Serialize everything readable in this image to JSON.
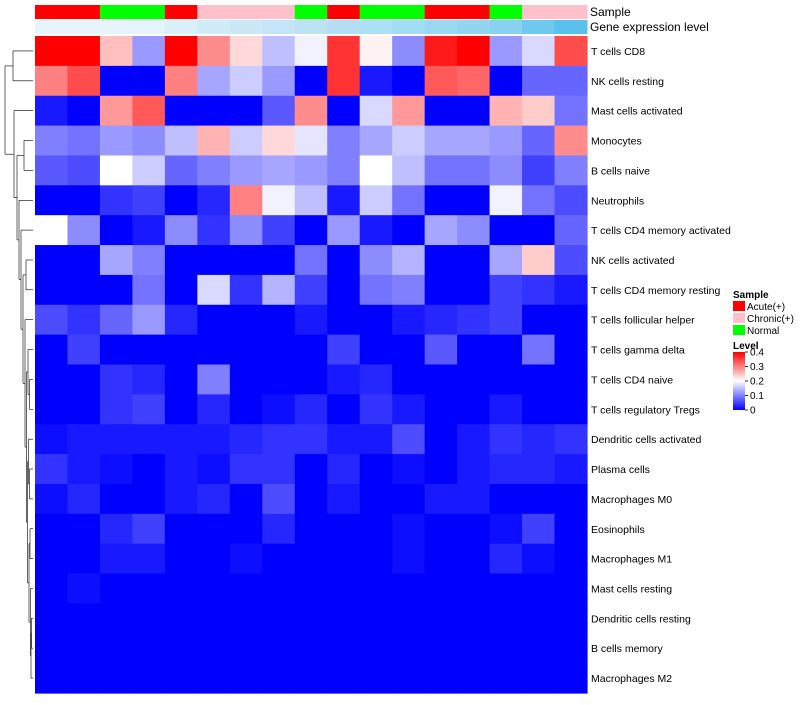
{
  "chart_data": {
    "type": "heatmap",
    "title": "",
    "annotation_rows": {
      "sample_label": "Sample",
      "expression_label": "Gene expression level",
      "sample_groups": [
        "Acute(+)",
        "Acute(+)",
        "Normal",
        "Normal",
        "Acute(+)",
        "Chronic(+)",
        "Chronic(+)",
        "Chronic(+)",
        "Normal",
        "Acute(+)",
        "Normal",
        "Normal",
        "Acute(+)",
        "Acute(+)",
        "Normal",
        "Chronic(+)",
        "Chronic(+)"
      ],
      "expression_level_colors": [
        "#e6f4fb",
        "#e6f4fb",
        "#e6f4fb",
        "#e6f4fb",
        "#daf0f9",
        "#d2ecf7",
        "#cbe8f6",
        "#c3e5f5",
        "#bce2f4",
        "#b4def3",
        "#ace0f4",
        "#a4ddf3",
        "#9bd9f2",
        "#92d5f1",
        "#88d1f0",
        "#6fc8ee",
        "#59c1ec"
      ]
    },
    "rows": [
      "T cells CD8",
      "NK cells resting",
      "Mast cells activated",
      "Monocytes",
      "B cells naive",
      "Neutrophils",
      "T cells CD4 memory activated",
      "NK cells activated",
      "T cells CD4 memory resting",
      "T cells follicular helper",
      "T cells gamma delta",
      "T cells CD4 naive",
      "T cells regulatory  Tregs",
      "Dendritic cells activated",
      "Plasma cells",
      "Macrophages M0",
      "Eosinophils",
      "Macrophages M1",
      "Mast cells resting",
      "Dendritic cells resting",
      "B cells memory",
      "Macrophages M2"
    ],
    "values": [
      [
        0.4,
        0.4,
        0.25,
        0.12,
        0.4,
        0.29,
        0.23,
        0.15,
        0.19,
        0.36,
        0.21,
        0.11,
        0.38,
        0.4,
        0.12,
        0.17,
        0.34
      ],
      [
        0.3,
        0.34,
        0.0,
        0.0,
        0.3,
        0.13,
        0.16,
        0.12,
        0.0,
        0.36,
        0.02,
        0.0,
        0.33,
        0.32,
        0.0,
        0.08,
        0.08
      ],
      [
        0.02,
        0.0,
        0.28,
        0.33,
        0.0,
        0.0,
        0.0,
        0.07,
        0.29,
        0.0,
        0.17,
        0.28,
        0.0,
        0.0,
        0.26,
        0.24,
        0.09
      ],
      [
        0.1,
        0.09,
        0.12,
        0.11,
        0.15,
        0.26,
        0.16,
        0.23,
        0.18,
        0.1,
        0.13,
        0.16,
        0.13,
        0.13,
        0.12,
        0.08,
        0.29
      ],
      [
        0.07,
        0.06,
        0.2,
        0.16,
        0.08,
        0.1,
        0.12,
        0.13,
        0.12,
        0.1,
        0.2,
        0.15,
        0.09,
        0.09,
        0.11,
        0.05,
        0.1
      ],
      [
        0.0,
        0.0,
        0.04,
        0.05,
        0.0,
        0.03,
        0.3,
        0.19,
        0.15,
        0.02,
        0.16,
        0.09,
        0.0,
        0.0,
        0.19,
        0.09,
        0.06
      ],
      [
        0.2,
        0.11,
        0.0,
        0.02,
        0.11,
        0.04,
        0.11,
        0.05,
        0.0,
        0.12,
        0.02,
        0.0,
        0.13,
        0.11,
        0.0,
        0.0,
        0.08
      ],
      [
        0.0,
        0.0,
        0.13,
        0.1,
        0.0,
        0.0,
        0.0,
        0.0,
        0.09,
        0.0,
        0.11,
        0.14,
        0.0,
        0.0,
        0.13,
        0.24,
        0.06
      ],
      [
        0.0,
        0.0,
        0.0,
        0.09,
        0.0,
        0.17,
        0.04,
        0.14,
        0.05,
        0.0,
        0.09,
        0.1,
        0.0,
        0.0,
        0.05,
        0.04,
        0.02
      ],
      [
        0.06,
        0.04,
        0.08,
        0.12,
        0.03,
        0.0,
        0.0,
        0.0,
        0.02,
        0.0,
        0.0,
        0.02,
        0.03,
        0.04,
        0.05,
        0.0,
        0.0
      ],
      [
        0.0,
        0.05,
        0.0,
        0.0,
        0.0,
        0.0,
        0.0,
        0.0,
        0.0,
        0.05,
        0.0,
        0.0,
        0.07,
        0.0,
        0.0,
        0.09,
        0.0
      ],
      [
        0.0,
        0.0,
        0.04,
        0.03,
        0.0,
        0.1,
        0.0,
        0.0,
        0.0,
        0.02,
        0.03,
        0.0,
        0.0,
        0.0,
        0.0,
        0.0,
        0.0
      ],
      [
        0.0,
        0.0,
        0.04,
        0.05,
        0.0,
        0.03,
        0.0,
        0.01,
        0.03,
        0.0,
        0.04,
        0.02,
        0.0,
        0.0,
        0.02,
        0.0,
        0.0
      ],
      [
        0.01,
        0.02,
        0.02,
        0.02,
        0.02,
        0.02,
        0.03,
        0.04,
        0.04,
        0.02,
        0.02,
        0.06,
        0.0,
        0.02,
        0.04,
        0.03,
        0.04
      ],
      [
        0.04,
        0.02,
        0.01,
        0.0,
        0.02,
        0.01,
        0.04,
        0.04,
        0.0,
        0.03,
        0.0,
        0.01,
        0.0,
        0.02,
        0.03,
        0.03,
        0.02
      ],
      [
        0.01,
        0.03,
        0.0,
        0.0,
        0.02,
        0.03,
        0.0,
        0.06,
        0.0,
        0.02,
        0.0,
        0.0,
        0.02,
        0.02,
        0.0,
        0.0,
        0.0
      ],
      [
        0.0,
        0.0,
        0.03,
        0.05,
        0.0,
        0.0,
        0.0,
        0.03,
        0.0,
        0.0,
        0.0,
        0.01,
        0.0,
        0.0,
        0.01,
        0.05,
        0.0
      ],
      [
        0.0,
        0.0,
        0.02,
        0.02,
        0.0,
        0.0,
        0.01,
        0.0,
        0.0,
        0.0,
        0.0,
        0.01,
        0.0,
        0.0,
        0.03,
        0.01,
        0.0
      ],
      [
        0.0,
        0.01,
        0.0,
        0.0,
        0.0,
        0.0,
        0.0,
        0.0,
        0.0,
        0.0,
        0.0,
        0.0,
        0.0,
        0.0,
        0.0,
        0.0,
        0.0
      ],
      [
        0.0,
        0.0,
        0.0,
        0.0,
        0.0,
        0.0,
        0.0,
        0.0,
        0.0,
        0.0,
        0.0,
        0.0,
        0.0,
        0.0,
        0.0,
        0.0,
        0.0
      ],
      [
        0.0,
        0.0,
        0.0,
        0.0,
        0.0,
        0.0,
        0.0,
        0.0,
        0.0,
        0.0,
        0.0,
        0.0,
        0.0,
        0.0,
        0.0,
        0.0,
        0.0
      ],
      [
        0.0,
        0.0,
        0.0,
        0.0,
        0.0,
        0.0,
        0.0,
        0.0,
        0.0,
        0.0,
        0.0,
        0.0,
        0.0,
        0.0,
        0.0,
        0.0,
        0.0
      ]
    ],
    "value_range": [
      0,
      0.4
    ],
    "legend": {
      "sample_title": "Sample",
      "sample_items": [
        {
          "label": "Acute(+)",
          "color": "#ff0000"
        },
        {
          "label": "Chronic(+)",
          "color": "#ffc0cb"
        },
        {
          "label": "Normal",
          "color": "#00ff00"
        }
      ],
      "level_title": "Level",
      "level_ticks": [
        "0.4",
        "0.3",
        "0.2",
        "0.1",
        "0"
      ],
      "level_tick_values": [
        0.4,
        0.3,
        0.2,
        0.1,
        0
      ],
      "placement": "right"
    },
    "colors": {
      "low": "#0000ff",
      "mid": "#ffffff",
      "high": "#ff0000"
    },
    "dendrogram": "rows"
  }
}
